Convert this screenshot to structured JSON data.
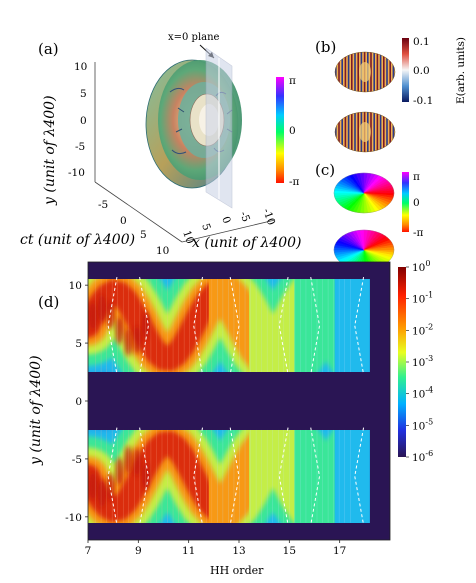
{
  "panels": {
    "a": {
      "label": "(a)",
      "annotation": "x=0 plane",
      "y_axis_label": "y (unit of λ400)",
      "ct_axis_label": "ct (unit of λ400)",
      "x_axis_label": "x (unit of λ400)",
      "y_ticks": [
        "10",
        "5",
        "0",
        "-5",
        "-10"
      ],
      "ct_ticks": [
        "-5",
        "0",
        "5",
        "10"
      ],
      "x_ticks": [
        "-10",
        "-5",
        "0",
        "5",
        "10"
      ],
      "phase_colorbar_ticks": [
        "π",
        "0",
        "-π"
      ]
    },
    "b": {
      "label": "(b)",
      "colorbar_label": "E(arb. units)",
      "colorbar_ticks": [
        "0.1",
        "0.0",
        "-0.1"
      ]
    },
    "c": {
      "label": "(c)",
      "colorbar_ticks": [
        "π",
        "0",
        "-π"
      ]
    },
    "d": {
      "label": "(d)",
      "chart_data": {
        "type": "heatmap",
        "xlabel": "HH order",
        "ylabel": "y (unit of λ400)",
        "x_ticks": [
          7,
          9,
          11,
          13,
          15,
          17
        ],
        "y_ticks": [
          10,
          5,
          0,
          -5,
          -10
        ],
        "xlim": [
          7,
          19
        ],
        "ylim": [
          -12,
          12
        ],
        "colorbar_scale": "log",
        "colorbar_ticks": [
          "10^0",
          "10^-1",
          "10^-2",
          "10^-3",
          "10^-4",
          "10^-5",
          "10^-6"
        ],
        "colorbar_range": [
          1e-06,
          1
        ]
      }
    }
  },
  "colors": {
    "heatmap_background": "#2a1554",
    "high": "#c0140c",
    "mid": "#33e08a",
    "low": "#2840c8",
    "dashed_lines": "#ffffff"
  }
}
